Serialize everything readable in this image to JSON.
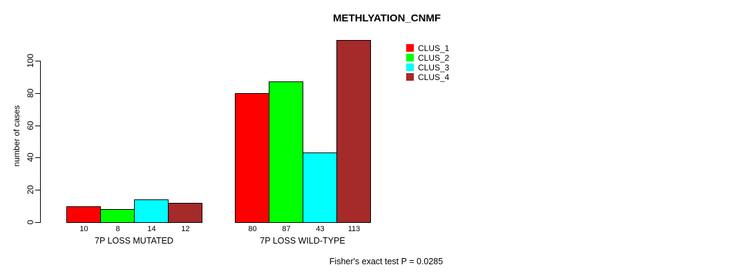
{
  "title": "METHLYATION_CNMF",
  "annotation": "Fisher's exact test P = 0.0285",
  "chart_data": {
    "type": "bar",
    "title": "METHLYATION_CNMF",
    "xlabel": "",
    "ylabel": "number of cases",
    "yticks": [
      0,
      20,
      40,
      60,
      80,
      100
    ],
    "ylim": [
      0,
      113
    ],
    "grid": false,
    "legend_position": "top-right",
    "categories": [
      "7P LOSS MUTATED",
      "7P LOSS WILD-TYPE"
    ],
    "series": [
      {
        "name": "CLUS_1",
        "color": "#FF0000",
        "values": [
          10,
          80
        ]
      },
      {
        "name": "CLUS_2",
        "color": "#00FF00",
        "values": [
          8,
          87
        ]
      },
      {
        "name": "CLUS_3",
        "color": "#00FFFF",
        "values": [
          14,
          43
        ]
      },
      {
        "name": "CLUS_4",
        "color": "#A52A2A",
        "values": [
          12,
          113
        ]
      }
    ],
    "groups": [
      {
        "label": "7P LOSS MUTATED",
        "values": [
          10,
          8,
          14,
          12
        ],
        "value_labels": [
          "10",
          "8",
          "14",
          "12"
        ]
      },
      {
        "label": "7P LOSS WILD-TYPE",
        "values": [
          80,
          87,
          43,
          113
        ],
        "value_labels": [
          "80",
          "87",
          "43",
          "113"
        ]
      }
    ]
  }
}
